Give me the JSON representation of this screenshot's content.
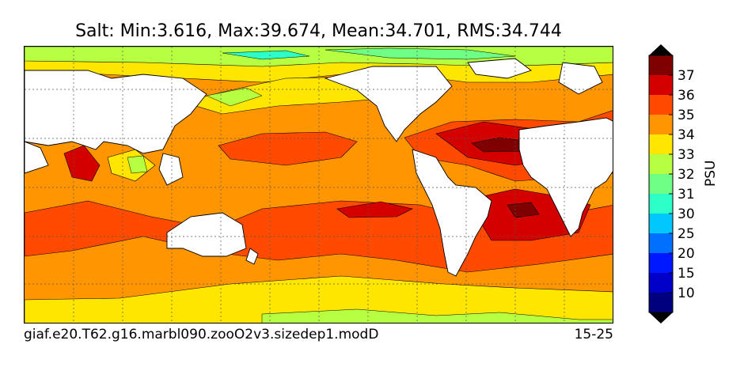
{
  "chart_data": {
    "type": "heatmap",
    "title": "Salt: Min:3.616, Max:39.674, Mean:34.701, RMS:34.744",
    "footer_left": "giaf.e20.T62.g16.marbl090.zooO2v3.sizedep1.modD",
    "footer_right": "15-25",
    "colorbar": {
      "label": "PSU",
      "levels": [
        10,
        15,
        20,
        25,
        30,
        31,
        32,
        33,
        34,
        35,
        36,
        37
      ],
      "tick_labels": [
        "10",
        "15",
        "20",
        "25",
        "30",
        "31",
        "32",
        "33",
        "34",
        "35",
        "36",
        "37"
      ],
      "colors": [
        "#00007f",
        "#0000c8",
        "#0018ff",
        "#0070ff",
        "#00c8ff",
        "#2dffc8",
        "#70ff86",
        "#b7ff41",
        "#ffe600",
        "#ff9500",
        "#ff4a00",
        "#d40000",
        "#7f0000"
      ],
      "extend": "both"
    },
    "grid": true,
    "land_color": "#ffffff"
  }
}
